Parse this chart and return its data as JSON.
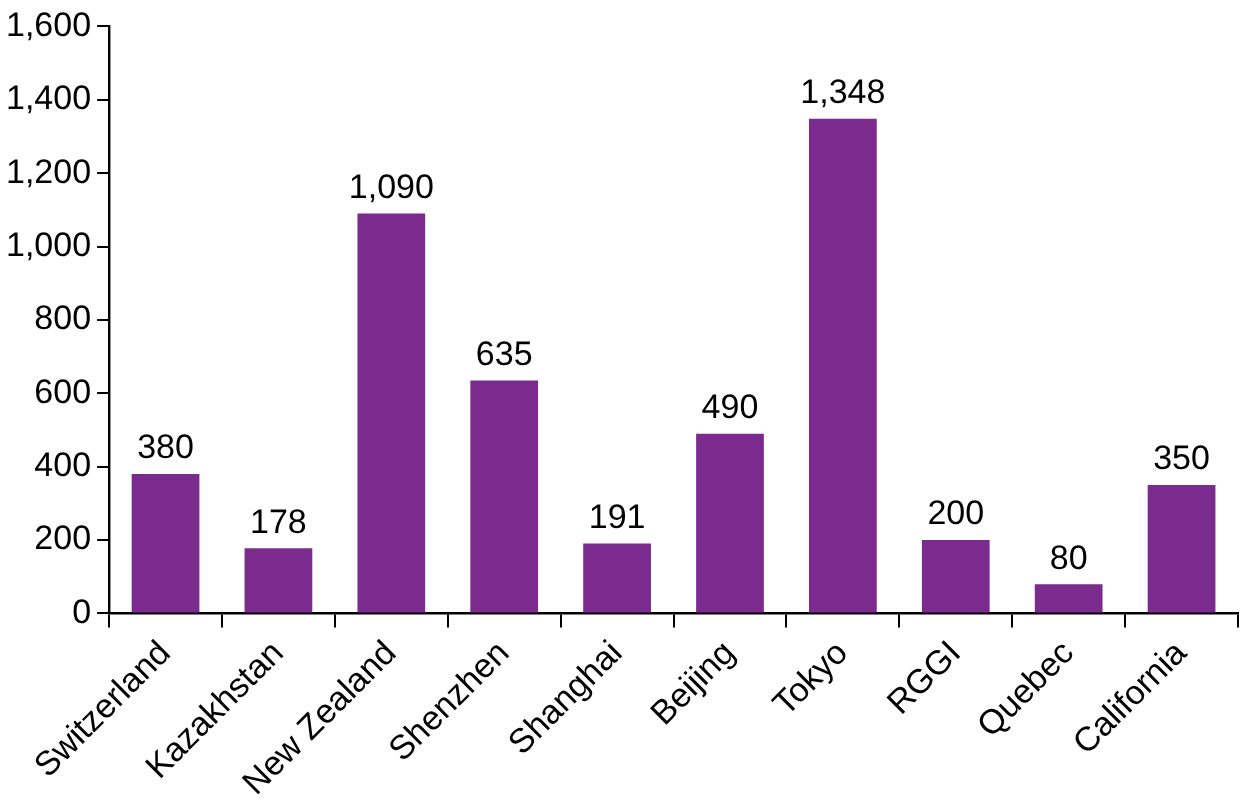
{
  "chart_data": {
    "type": "bar",
    "categories": [
      "Switzerland",
      "Kazakhstan",
      "New Zealand",
      "Shenzhen",
      "Shanghai",
      "Beijing",
      "Tokyo",
      "RGGI",
      "Quebec",
      "California"
    ],
    "values": [
      380,
      178,
      1090,
      635,
      191,
      490,
      1348,
      200,
      80,
      350
    ],
    "value_labels": [
      "380",
      "178",
      "1,090",
      "635",
      "191",
      "490",
      "1,348",
      "200",
      "80",
      "350"
    ],
    "color": "#7b2a8e",
    "ylim": [
      0,
      1600
    ],
    "yticks": [
      0,
      {
        "value": 200,
        "label": "200"
      },
      {
        "value": 400,
        "label": "400"
      },
      {
        "value": 600,
        "label": "600"
      },
      {
        "value": 800,
        "label": "800"
      },
      {
        "value": 1000,
        "label": "1,000"
      },
      {
        "value": 1200,
        "label": "1,200"
      },
      {
        "value": 1400,
        "label": "1,400"
      },
      {
        "value": 1600,
        "label": "1,600"
      }
    ],
    "grid": false,
    "legend": false
  }
}
